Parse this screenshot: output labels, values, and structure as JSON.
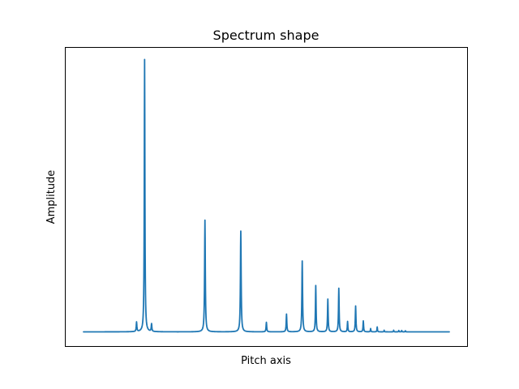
{
  "chart_data": {
    "type": "line",
    "title": "Spectrum shape",
    "xlabel": "Pitch axis",
    "ylabel": "Amplitude",
    "xticks": [],
    "yticks": [],
    "grid": false,
    "xlim": [
      0,
      1000
    ],
    "ylim": [
      -0.05,
      1.0
    ],
    "colors": {
      "line": "#1f77b4",
      "frame": "#000000"
    },
    "baseline": 0.0,
    "peaks": [
      {
        "x": 145,
        "y": 0.035,
        "width": 2.0
      },
      {
        "x": 167,
        "y": 1.0,
        "width": 2.0
      },
      {
        "x": 186,
        "y": 0.028,
        "width": 2.0
      },
      {
        "x": 332,
        "y": 0.41,
        "width": 2.3
      },
      {
        "x": 430,
        "y": 0.37,
        "width": 2.3
      },
      {
        "x": 500,
        "y": 0.035,
        "width": 2.0
      },
      {
        "x": 555,
        "y": 0.065,
        "width": 2.0
      },
      {
        "x": 598,
        "y": 0.26,
        "width": 2.2
      },
      {
        "x": 635,
        "y": 0.17,
        "width": 2.0
      },
      {
        "x": 668,
        "y": 0.12,
        "width": 2.0
      },
      {
        "x": 698,
        "y": 0.16,
        "width": 2.0
      },
      {
        "x": 722,
        "y": 0.038,
        "width": 1.8
      },
      {
        "x": 744,
        "y": 0.095,
        "width": 2.0
      },
      {
        "x": 765,
        "y": 0.04,
        "width": 1.8
      },
      {
        "x": 785,
        "y": 0.012,
        "width": 1.5
      },
      {
        "x": 803,
        "y": 0.018,
        "width": 1.5
      },
      {
        "x": 822,
        "y": 0.006,
        "width": 1.2
      },
      {
        "x": 848,
        "y": 0.006,
        "width": 1.2
      },
      {
        "x": 862,
        "y": 0.005,
        "width": 1.2
      },
      {
        "x": 870,
        "y": 0.005,
        "width": 1.2
      },
      {
        "x": 880,
        "y": 0.004,
        "width": 1.2
      }
    ]
  }
}
